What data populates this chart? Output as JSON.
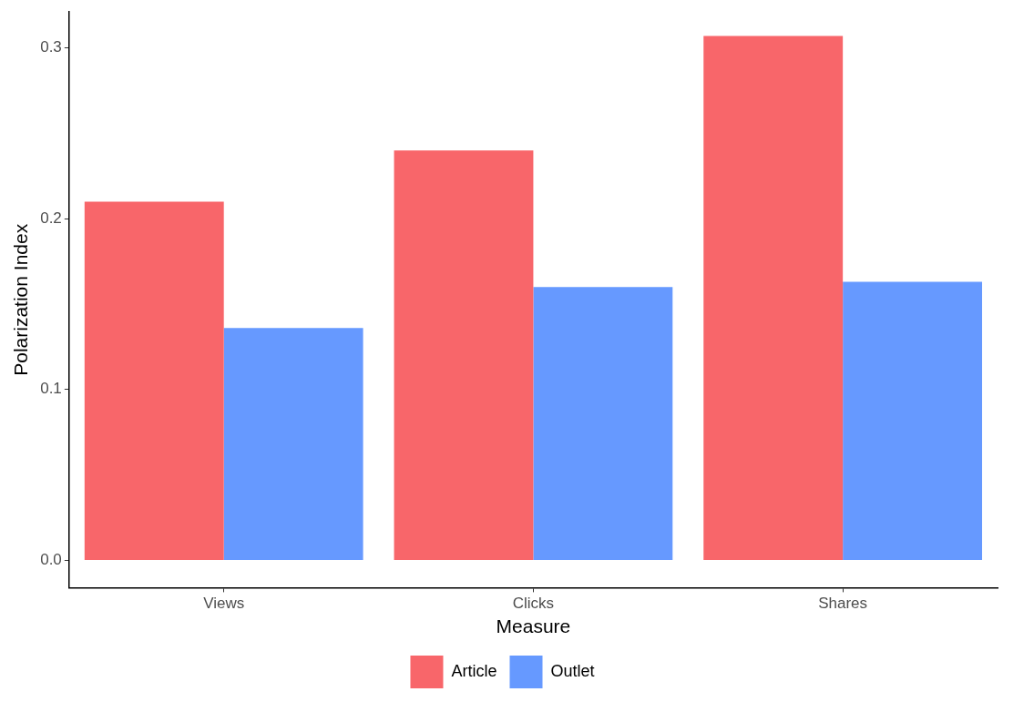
{
  "chart_data": {
    "type": "bar",
    "xlabel": "Measure",
    "ylabel": "Polarization Index",
    "categories": [
      "Views",
      "Clicks",
      "Shares"
    ],
    "series": [
      {
        "name": "Article",
        "color": "#f8666a",
        "values": [
          0.21,
          0.24,
          0.307
        ]
      },
      {
        "name": "Outlet",
        "color": "#6699ff",
        "values": [
          0.136,
          0.16,
          0.163
        ]
      }
    ],
    "ylim": [
      -0.016,
      0.321
    ],
    "yticks": [
      {
        "value": 0,
        "label": "0.0"
      },
      0.1,
      0.2,
      0.3
    ],
    "legend": "bottom"
  }
}
